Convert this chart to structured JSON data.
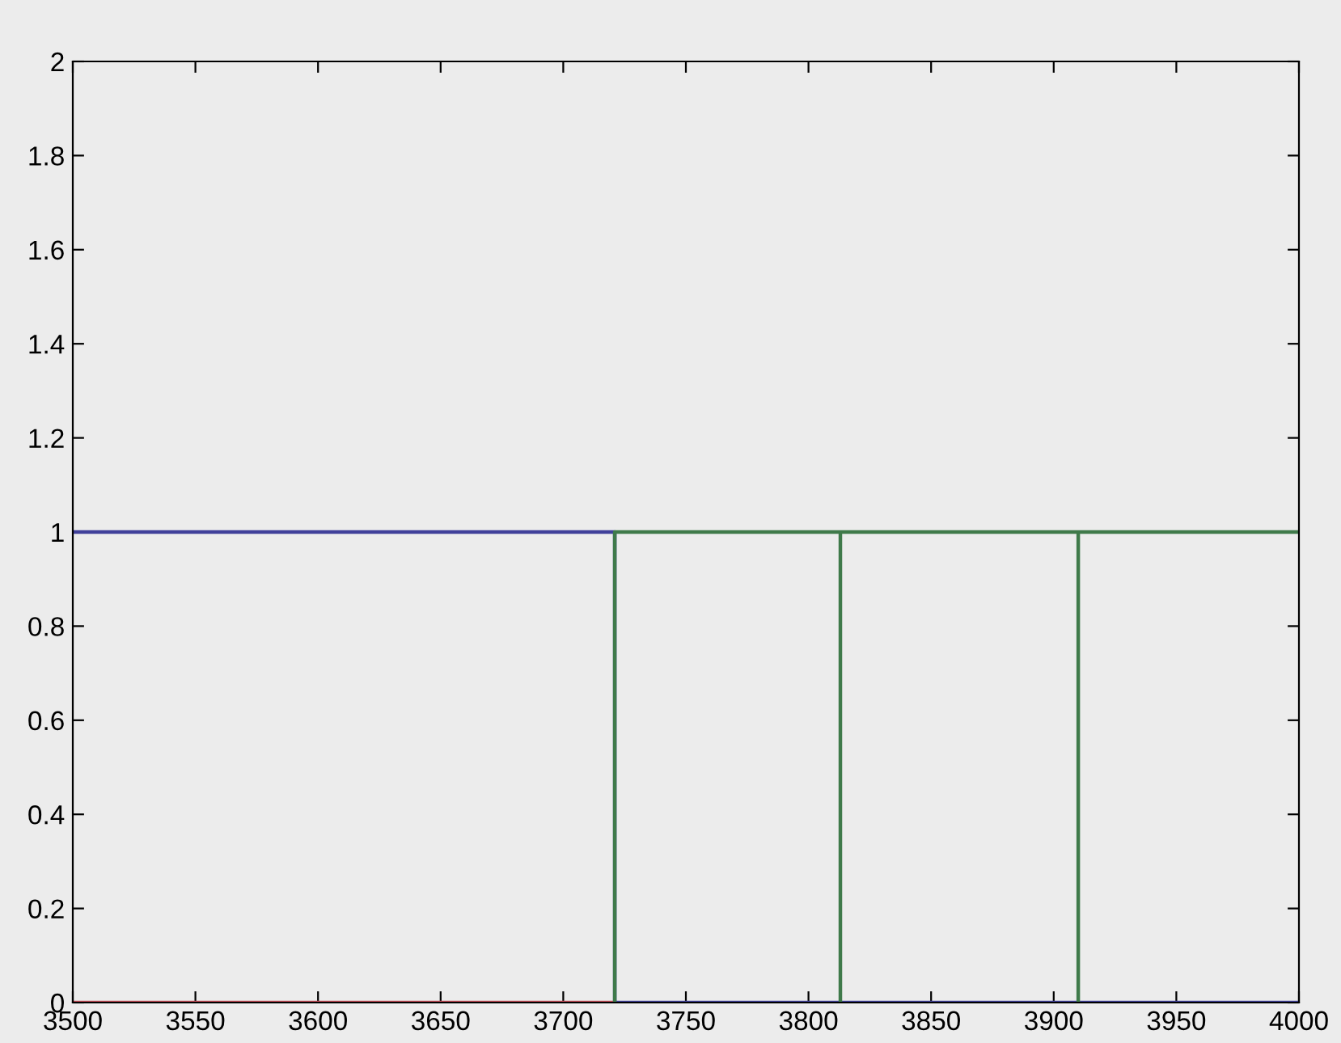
{
  "chart_data": {
    "type": "line",
    "xlim": [
      3500,
      4000
    ],
    "ylim": [
      0,
      2
    ],
    "xticks": [
      3500,
      3550,
      3600,
      3650,
      3700,
      3750,
      3800,
      3850,
      3900,
      3950,
      4000
    ],
    "yticks": [
      0,
      0.2,
      0.4,
      0.6,
      0.8,
      1,
      1.2,
      1.4,
      1.6,
      1.8,
      2
    ],
    "marker": "none",
    "line_style": "solid",
    "series": [
      {
        "color": "#c04a55",
        "x": [
          3500,
          3721
        ],
        "values": [
          0,
          0
        ]
      },
      {
        "color": "#40409a",
        "x": [
          3500,
          3721,
          3721,
          4000
        ],
        "values": [
          1,
          1,
          0,
          0
        ]
      },
      {
        "color": "#3f7a4a",
        "x": [
          3721,
          3721,
          3813,
          3813,
          3813,
          3910,
          3910,
          3910,
          4000
        ],
        "values": [
          0,
          1,
          1,
          0,
          1,
          1,
          0,
          1,
          1
        ]
      }
    ]
  }
}
